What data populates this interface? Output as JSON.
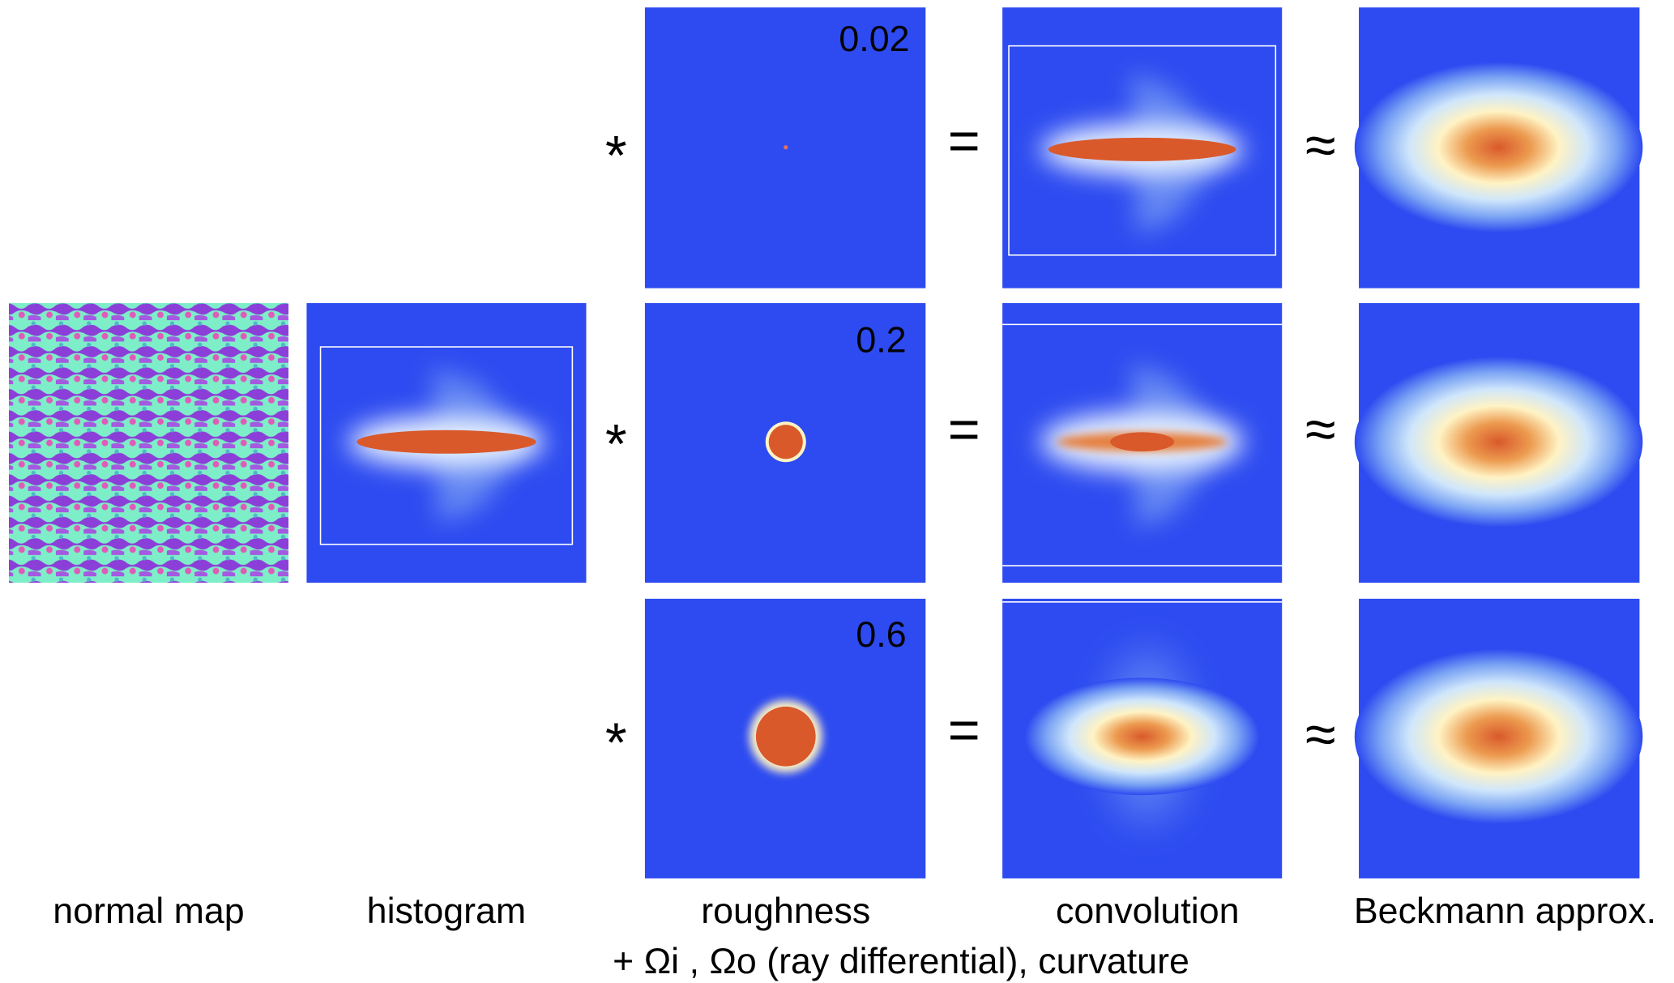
{
  "columns": [
    "normal map",
    "histogram",
    "roughness",
    "convolution",
    "Beckmann approx."
  ],
  "rows": [
    {
      "roughness": "0.02",
      "convolve": "*",
      "equals": "=",
      "approx": "≈"
    },
    {
      "roughness": "0.2",
      "convolve": "*",
      "equals": "=",
      "approx": "≈"
    },
    {
      "roughness": "0.6",
      "convolve": "*",
      "equals": "=",
      "approx": "≈"
    }
  ],
  "caption": "+ Ωi , Ωo (ray differential), curvature"
}
